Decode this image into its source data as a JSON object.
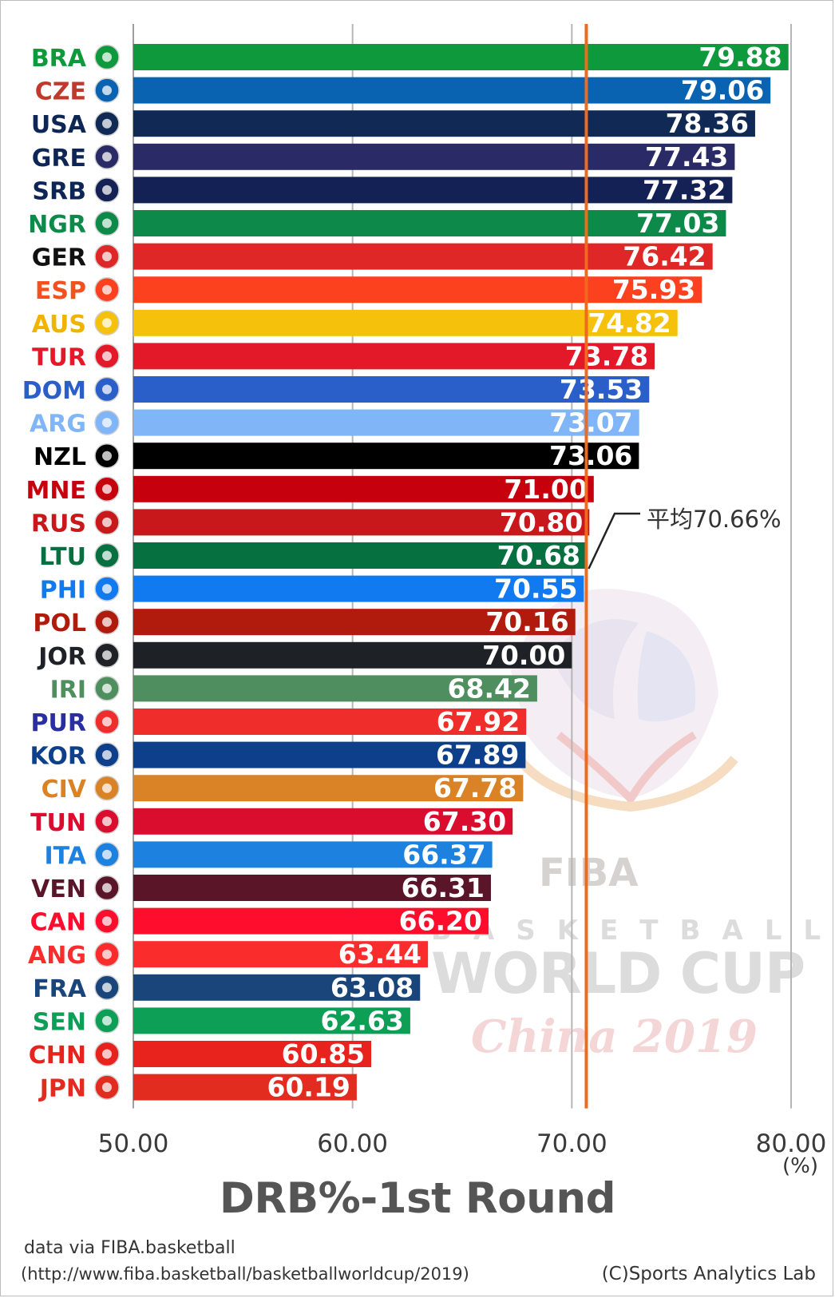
{
  "chart_data": {
    "type": "bar",
    "orientation": "horizontal",
    "title": "DRB%-1st Round",
    "unit_label": "(%)",
    "xlim": [
      50,
      80
    ],
    "xticks": [
      "50.00",
      "60.00",
      "70.00",
      "80.00"
    ],
    "grid": true,
    "average": {
      "value": 70.66,
      "label": "平均70.66%",
      "color": "#f06a1d"
    },
    "categories": [
      "BRA",
      "CZE",
      "USA",
      "GRE",
      "SRB",
      "NGR",
      "GER",
      "ESP",
      "AUS",
      "TUR",
      "DOM",
      "ARG",
      "NZL",
      "MNE",
      "RUS",
      "LTU",
      "PHI",
      "POL",
      "JOR",
      "IRI",
      "PUR",
      "KOR",
      "CIV",
      "TUN",
      "ITA",
      "VEN",
      "CAN",
      "ANG",
      "FRA",
      "SEN",
      "CHN",
      "JPN"
    ],
    "values": [
      79.88,
      79.06,
      78.36,
      77.43,
      77.32,
      77.03,
      76.42,
      75.93,
      74.82,
      73.78,
      73.53,
      73.07,
      73.06,
      71.0,
      70.8,
      70.68,
      70.55,
      70.16,
      70.0,
      68.42,
      67.92,
      67.89,
      67.78,
      67.3,
      66.37,
      66.31,
      66.2,
      63.44,
      63.08,
      62.63,
      60.85,
      60.19
    ],
    "value_labels": [
      "79.88",
      "79.06",
      "78.36",
      "77.43",
      "77.32",
      "77.03",
      "76.42",
      "75.93",
      "74.82",
      "73.78",
      "73.53",
      "73.07",
      "73.06",
      "71.00",
      "70.80",
      "70.68",
      "70.55",
      "70.16",
      "70.00",
      "68.42",
      "67.92",
      "67.89",
      "67.78",
      "67.30",
      "66.37",
      "66.31",
      "66.20",
      "63.44",
      "63.08",
      "62.63",
      "60.85",
      "60.19"
    ],
    "bar_colors": [
      "#0e9a3c",
      "#0a63b1",
      "#112a55",
      "#2a2a66",
      "#132155",
      "#0d8a4a",
      "#e02727",
      "#fb411e",
      "#f5c10a",
      "#e3192a",
      "#2a5fc9",
      "#80b5f8",
      "#000000",
      "#c6000d",
      "#c8181b",
      "#067040",
      "#127af0",
      "#b01b0d",
      "#1e2226",
      "#4f8e5e",
      "#ef2d2a",
      "#0e3f8b",
      "#d98226",
      "#da0d2f",
      "#1d81e0",
      "#5a1628",
      "#ff0d2c",
      "#fa2c2c",
      "#19457a",
      "#0e9f57",
      "#e8221c",
      "#e22c20"
    ],
    "label_colors": [
      "#0e9a3c",
      "#c0392b",
      "#0d2656",
      "#0d2656",
      "#0d2656",
      "#0d8a4a",
      "#111111",
      "#f4511e",
      "#f0b400",
      "#e3192a",
      "#2a5fc9",
      "#80b5f8",
      "#000000",
      "#c6000d",
      "#c8181b",
      "#067040",
      "#127af0",
      "#b01b0d",
      "#1e2226",
      "#4f8e5e",
      "#2a2ea0",
      "#0e3f8b",
      "#d98226",
      "#da0d2f",
      "#1d81e0",
      "#5a1628",
      "#ff0d2c",
      "#fa2c2c",
      "#19457a",
      "#0e9f57",
      "#e8221c",
      "#e22c20"
    ]
  },
  "watermark": {
    "brand": "FIBA",
    "line1": "BASKETBALL",
    "line2": "WORLD CUP",
    "line3": "China 2019"
  },
  "footer": {
    "source_line1": "data via FIBA.basketball",
    "source_line2": "(http://www.fiba.basketball/basketballworldcup/2019)",
    "credit": "(C)Sports Analytics Lab"
  }
}
